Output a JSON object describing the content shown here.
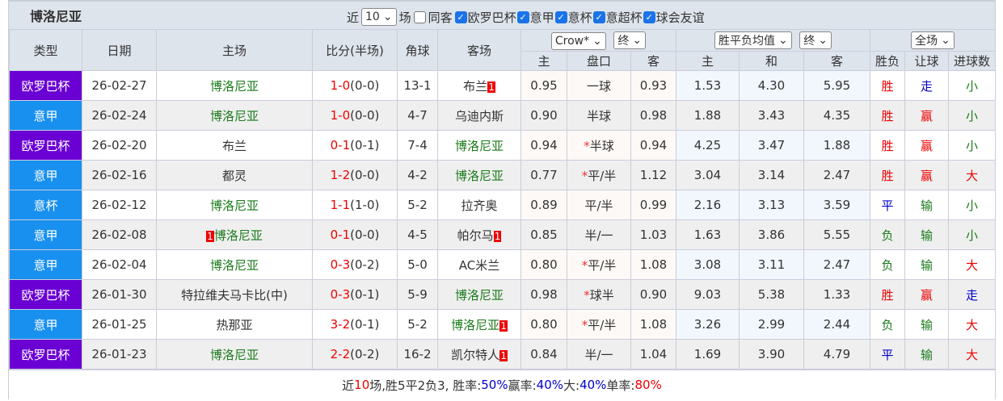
{
  "title": "博洛尼亚",
  "filters": {
    "near_label": "近",
    "count": "10",
    "games_label": "场",
    "same_away": "同客",
    "leagues": [
      {
        "label": "欧罗巴杯",
        "checked": true
      },
      {
        "label": "意甲",
        "checked": true
      },
      {
        "label": "意杯",
        "checked": true
      },
      {
        "label": "意超杯",
        "checked": true
      },
      {
        "label": "球会友谊",
        "checked": true
      }
    ]
  },
  "headers": {
    "type": "类型",
    "date": "日期",
    "home": "主场",
    "score": "比分(半场)",
    "corner": "角球",
    "away": "客场",
    "ah_company": "Crow*",
    "ah_stage": "终",
    "eu_company": "胜平负均值",
    "eu_stage": "终",
    "scope": "全场",
    "sub": [
      "主",
      "盘口",
      "客",
      "主",
      "和",
      "客",
      "胜负",
      "让球",
      "进球数"
    ]
  },
  "colors": {
    "europa": "#6a00d4",
    "serie_a": "#1890f0",
    "home_green": "#1a7a1a",
    "red": "#e00",
    "blue": "#00c"
  },
  "rows": [
    {
      "type": "欧罗巴杯",
      "tc": "#6a00d4",
      "date": "26-02-27",
      "home": "博洛尼亚",
      "hg": true,
      "hb": "",
      "ft": "1-0",
      "ht": "(0-0)",
      "sc": "red",
      "corner": "13-1",
      "away": "布兰",
      "ag": false,
      "ab": "1",
      "a1": "0.95",
      "line": "一球",
      "star": false,
      "a2": "0.93",
      "e1": "1.53",
      "e2": "4.30",
      "e3": "5.95",
      "r": "胜",
      "rc": "red",
      "h": "走",
      "hc": "blue",
      "g": "小",
      "gc": "green"
    },
    {
      "type": "意甲",
      "tc": "#1890f0",
      "date": "26-02-24",
      "home": "博洛尼亚",
      "hg": true,
      "hb": "",
      "ft": "1-0",
      "ht": "(0-0)",
      "sc": "red",
      "corner": "4-7",
      "away": "乌迪内斯",
      "ag": false,
      "ab": "",
      "a1": "0.90",
      "line": "半球",
      "star": false,
      "a2": "0.98",
      "e1": "1.88",
      "e2": "3.43",
      "e3": "4.35",
      "r": "胜",
      "rc": "red",
      "h": "赢",
      "hc": "red",
      "g": "小",
      "gc": "green"
    },
    {
      "type": "欧罗巴杯",
      "tc": "#6a00d4",
      "date": "26-02-20",
      "home": "布兰",
      "hg": false,
      "hb": "",
      "ft": "0-1",
      "ht": "(0-1)",
      "sc": "red",
      "corner": "7-4",
      "away": "博洛尼亚",
      "ag": true,
      "ab": "",
      "a1": "0.94",
      "line": "半球",
      "star": true,
      "a2": "0.94",
      "e1": "4.25",
      "e2": "3.47",
      "e3": "1.88",
      "r": "胜",
      "rc": "red",
      "h": "赢",
      "hc": "red",
      "g": "小",
      "gc": "green"
    },
    {
      "type": "意甲",
      "tc": "#1890f0",
      "date": "26-02-16",
      "home": "都灵",
      "hg": false,
      "hb": "",
      "ft": "1-2",
      "ht": "(0-0)",
      "sc": "red",
      "corner": "4-2",
      "away": "博洛尼亚",
      "ag": true,
      "ab": "",
      "a1": "0.77",
      "line": "平/半",
      "star": true,
      "a2": "1.12",
      "e1": "3.04",
      "e2": "3.14",
      "e3": "2.47",
      "r": "胜",
      "rc": "red",
      "h": "赢",
      "hc": "red",
      "g": "大",
      "gc": "red"
    },
    {
      "type": "意杯",
      "tc": "#1890f0",
      "date": "26-02-12",
      "home": "博洛尼亚",
      "hg": true,
      "hb": "",
      "ft": "1-1",
      "ht": "(1-0)",
      "sc": "red",
      "corner": "5-2",
      "away": "拉齐奥",
      "ag": false,
      "ab": "",
      "a1": "0.89",
      "line": "平/半",
      "star": false,
      "a2": "0.99",
      "e1": "2.16",
      "e2": "3.13",
      "e3": "3.59",
      "r": "平",
      "rc": "blue",
      "h": "输",
      "hc": "green",
      "g": "小",
      "gc": "green"
    },
    {
      "type": "意甲",
      "tc": "#1890f0",
      "date": "26-02-08",
      "home": "博洛尼亚",
      "hg": true,
      "hb": "1",
      "ft": "0-1",
      "ht": "(0-0)",
      "sc": "red",
      "corner": "4-5",
      "away": "帕尔马",
      "ag": false,
      "ab": "1",
      "a1": "0.85",
      "line": "半/一",
      "star": false,
      "a2": "1.03",
      "e1": "1.63",
      "e2": "3.86",
      "e3": "5.55",
      "r": "负",
      "rc": "green",
      "h": "输",
      "hc": "green",
      "g": "小",
      "gc": "green"
    },
    {
      "type": "意甲",
      "tc": "#1890f0",
      "date": "26-02-04",
      "home": "博洛尼亚",
      "hg": true,
      "hb": "",
      "ft": "0-3",
      "ht": "(0-2)",
      "sc": "red",
      "corner": "5-0",
      "away": "AC米兰",
      "ag": false,
      "ab": "",
      "a1": "0.80",
      "line": "平/半",
      "star": true,
      "a2": "1.08",
      "e1": "3.08",
      "e2": "3.11",
      "e3": "2.47",
      "r": "负",
      "rc": "green",
      "h": "输",
      "hc": "green",
      "g": "大",
      "gc": "red"
    },
    {
      "type": "欧罗巴杯",
      "tc": "#6a00d4",
      "date": "26-01-30",
      "home": "特拉维夫马卡比(中)",
      "hg": false,
      "hb": "",
      "ft": "0-3",
      "ht": "(0-1)",
      "sc": "red",
      "corner": "5-9",
      "away": "博洛尼亚",
      "ag": true,
      "ab": "",
      "a1": "0.98",
      "line": "球半",
      "star": true,
      "a2": "0.90",
      "e1": "9.03",
      "e2": "5.38",
      "e3": "1.33",
      "r": "胜",
      "rc": "red",
      "h": "赢",
      "hc": "red",
      "g": "走",
      "gc": "blue"
    },
    {
      "type": "意甲",
      "tc": "#1890f0",
      "date": "26-01-25",
      "home": "热那亚",
      "hg": false,
      "hb": "",
      "ft": "3-2",
      "ht": "(0-1)",
      "sc": "red",
      "corner": "5-2",
      "away": "博洛尼亚",
      "ag": true,
      "ab": "1",
      "a1": "0.80",
      "line": "平/半",
      "star": true,
      "a2": "1.08",
      "e1": "3.26",
      "e2": "2.99",
      "e3": "2.44",
      "r": "负",
      "rc": "green",
      "h": "输",
      "hc": "green",
      "g": "大",
      "gc": "red"
    },
    {
      "type": "欧罗巴杯",
      "tc": "#6a00d4",
      "date": "26-01-23",
      "home": "博洛尼亚",
      "hg": true,
      "hb": "",
      "ft": "2-2",
      "ht": "(0-2)",
      "sc": "red",
      "corner": "16-2",
      "away": "凯尔特人",
      "ag": false,
      "ab": "1",
      "a1": "0.84",
      "line": "半/一",
      "star": false,
      "a2": "1.04",
      "e1": "1.69",
      "e2": "3.90",
      "e3": "4.79",
      "r": "平",
      "rc": "blue",
      "h": "输",
      "hc": "green",
      "g": "大",
      "gc": "red"
    }
  ],
  "summary": {
    "p1": "近",
    "n": "10",
    "p2": "场,胜5平2负3, 胜率:",
    "win": "50%",
    "p3": " 赢率:",
    "handicap": "40%",
    "p4": " 大:",
    "over": "40%",
    "p5": " 单率:",
    "odd": "80%"
  }
}
